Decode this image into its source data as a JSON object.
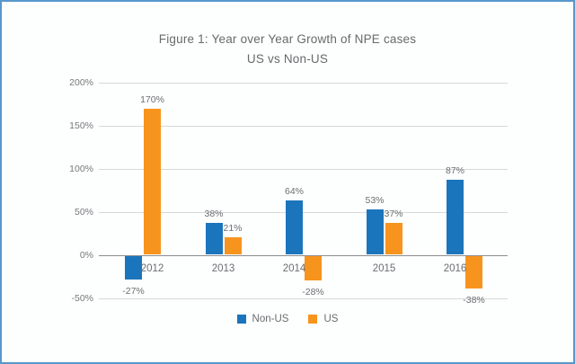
{
  "chart_data": {
    "type": "bar",
    "title": "Figure 1: Year over Year Growth of NPE cases",
    "subtitle": "US vs Non-US",
    "categories": [
      "2012",
      "2013",
      "2014",
      "2015",
      "2016"
    ],
    "series": [
      {
        "name": "Non-US",
        "color": "#1b75bc",
        "values": [
          -27,
          38,
          64,
          53,
          87
        ]
      },
      {
        "name": "US",
        "color": "#f7941e",
        "values": [
          170,
          21,
          -28,
          37,
          -38
        ]
      }
    ],
    "value_suffix": "%",
    "ylim": [
      -50,
      200
    ],
    "ytick_step": 50,
    "yticks": [
      "200%",
      "150%",
      "100%",
      "50%",
      "0%",
      "-50%"
    ],
    "grid": true,
    "legend_position": "bottom",
    "legend_entries": [
      "Non-US",
      "US"
    ]
  },
  "colors": {
    "non_us": "#1b75bc",
    "us": "#f7941e",
    "border": "#5898cc",
    "grid": "#d7d8d9",
    "zero_line": "#8c8d8f",
    "title_text": "#68696b",
    "label_text": "#6d6e71",
    "tick_text": "#77787b"
  }
}
